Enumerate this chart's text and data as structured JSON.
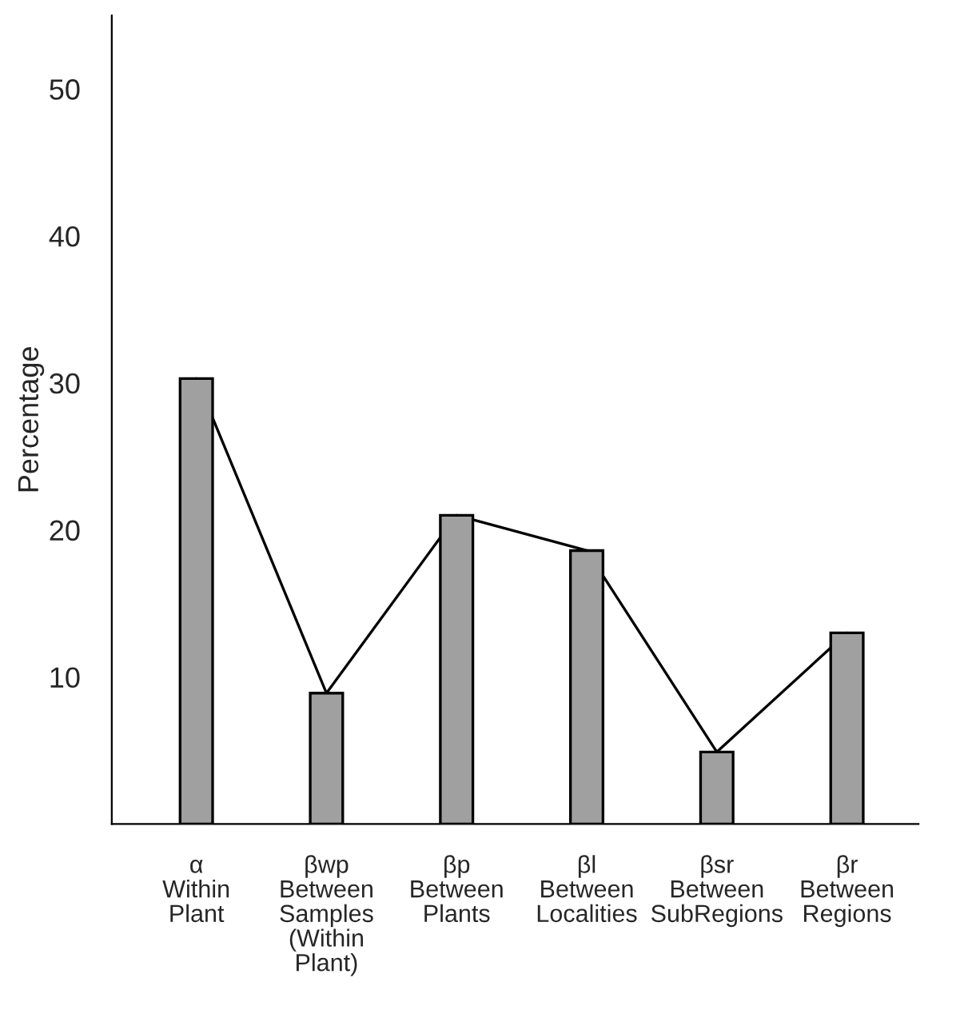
{
  "chart_data": {
    "type": "bar",
    "ylabel": "Percentage",
    "categories": [
      "α\nWithin\nPlant",
      "βwp\nBetween\nSamples\n(Within\nPlant)",
      "βp\nBetween\nPlants",
      "βl\nBetween\nLocalities",
      "βsr\nBetween\nSubRegions",
      "βr\nBetween\nRegions"
    ],
    "series": [
      {
        "color": "#a0a0a0",
        "values": [
          30.3,
          8.9,
          21,
          18.6,
          4.9,
          13
        ]
      },
      {
        "type": "line",
        "color": "#000000",
        "values": [
          30.3,
          8.9,
          21,
          18.6,
          4.9,
          13
        ]
      }
    ],
    "ylim": [
      0,
      55
    ],
    "yticks": [
      10,
      20,
      30,
      40,
      50
    ],
    "grid": false,
    "marker": "none",
    "line_style": "solid"
  }
}
